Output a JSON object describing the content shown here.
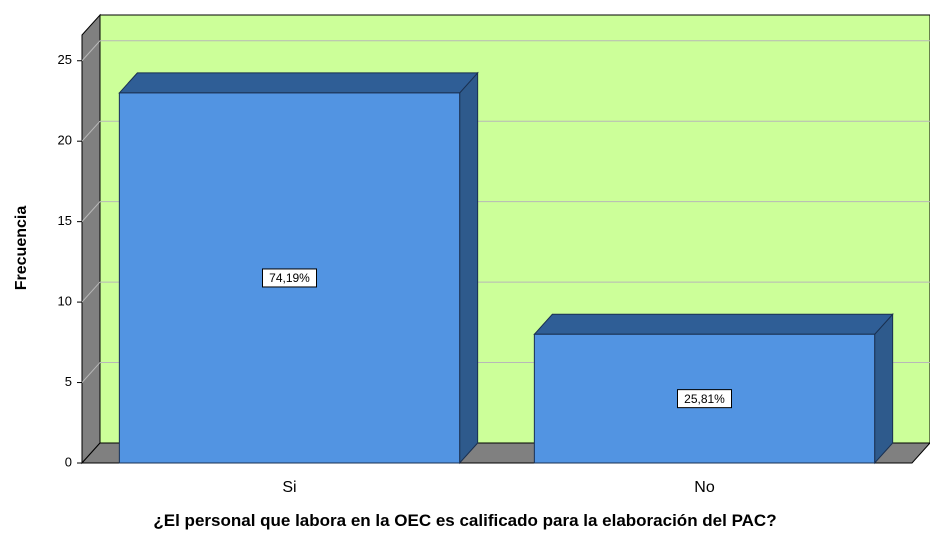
{
  "chart_data": {
    "type": "bar3d",
    "x_label": "¿El personal que labora en la OEC es calificado para la elaboración del PAC?",
    "y_label": "Frecuencia",
    "categories": [
      "Si",
      "No"
    ],
    "values": [
      23,
      8
    ],
    "percent_labels": [
      "74,19%",
      "25,81%"
    ],
    "color": "#5294e2",
    "ylim": [
      0,
      26.6
    ],
    "yticks": [
      0,
      5,
      10,
      15,
      20,
      25
    ],
    "grid": true,
    "background": "#ccff99"
  }
}
